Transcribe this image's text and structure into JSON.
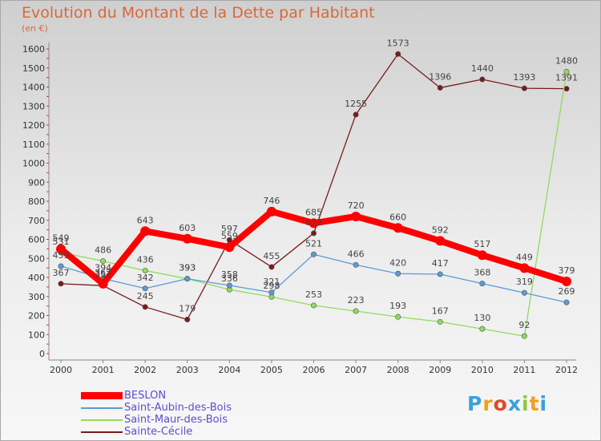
{
  "header": {
    "title": "Evolution du Montant de la Dette par Habitant",
    "unit": "(en €)"
  },
  "logo": {
    "letters": [
      "P",
      "r",
      "o",
      "x",
      "i",
      "t",
      "i"
    ],
    "colors": [
      "#3aa0d8",
      "#f0a020",
      "#e04a2a",
      "#3aa0d8",
      "#8cc63f",
      "#f0a020",
      "#3aa0d8"
    ]
  },
  "chart_data": {
    "type": "line",
    "title": "Evolution du Montant de la Dette par Habitant",
    "ylabel": "(en €)",
    "xlabel": "",
    "x": [
      "2000",
      "2001",
      "2002",
      "2003",
      "2004",
      "2005",
      "2006",
      "2007",
      "2008",
      "2009",
      "2010",
      "2011",
      "2012"
    ],
    "ylim": [
      0,
      1600
    ],
    "yticks": [
      0,
      100,
      200,
      300,
      400,
      500,
      600,
      700,
      800,
      900,
      1000,
      1100,
      1200,
      1300,
      1400,
      1500,
      1600
    ],
    "grid": false,
    "legend": "bottom-left",
    "series": [
      {
        "name": "BESLON",
        "color": "#ff0000",
        "values": [
          549,
          367,
          643,
          603,
          559,
          746,
          685,
          720,
          660,
          592,
          517,
          449,
          379
        ],
        "labels": [
          "549",
          "367",
          "643",
          "603",
          "559",
          "746",
          "685",
          "720",
          "660",
          "592",
          "517",
          "449",
          "379"
        ]
      },
      {
        "name": "Saint-Aubin-des-Bois",
        "color": "#5b9bd5",
        "values": [
          459,
          394,
          342,
          393,
          358,
          321,
          521,
          466,
          420,
          417,
          368,
          319,
          269
        ],
        "labels": [
          "459",
          "394",
          "342",
          "393",
          "358",
          "321",
          "521",
          "466",
          "420",
          "417",
          "368",
          "319",
          "269"
        ]
      },
      {
        "name": "Saint-Maur-des-Bois",
        "color": "#8fdc5a",
        "values": [
          531,
          486,
          436,
          393,
          336,
          298,
          253,
          223,
          193,
          167,
          130,
          92,
          1480
        ],
        "labels": [
          "531",
          "486",
          "436",
          "393",
          "336",
          "298",
          "253",
          "223",
          "193",
          "167",
          "130",
          "92",
          "1480"
        ]
      },
      {
        "name": "Sainte-Cécile",
        "color": "#7a1a1a",
        "values": [
          367,
          357,
          245,
          179,
          597,
          455,
          632,
          1255,
          1573,
          1396,
          1440,
          1393,
          1391
        ],
        "labels": [
          "367",
          "357",
          "245",
          "179",
          "597",
          "455",
          "632",
          "1255",
          "1573",
          "1396",
          "1440",
          "1393",
          "1391"
        ]
      }
    ]
  }
}
